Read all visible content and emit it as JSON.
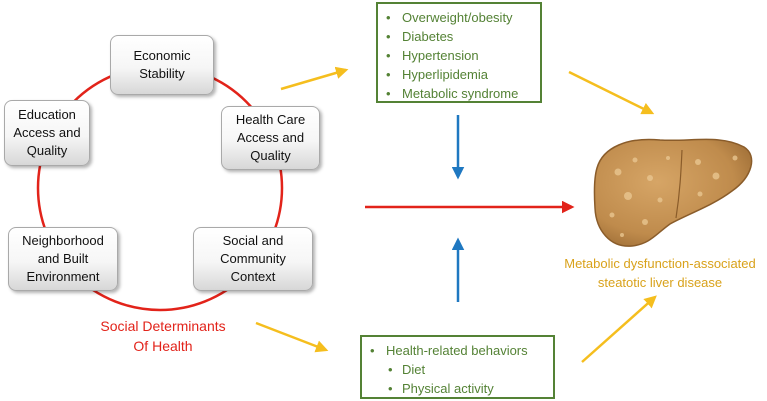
{
  "sdoh": {
    "title_line1": "Social Determinants",
    "title_line2": "Of Health",
    "boxes": {
      "economic": "Economic\nStability",
      "health_care": "Health Care\nAccess and\nQuality",
      "social": "Social and\nCommunity\nContext",
      "neighborhood": "Neighborhood\nand Built\nEnvironment",
      "education": "Education\nAccess and\nQuality"
    }
  },
  "metabolic_conditions": [
    "Overweight/obesity",
    "Diabetes",
    "Hypertension",
    "Hyperlipidemia",
    "Metabolic syndrome"
  ],
  "behaviors": {
    "header": "Health-related behaviors",
    "items": [
      "Diet",
      "Physical activity"
    ]
  },
  "outcome": {
    "label": "Metabolic dysfunction-associated\nsteatotic liver disease"
  },
  "colors": {
    "sdoh_red": "#e2231a",
    "box_green": "#548235",
    "arrow_gold": "#f5be1e",
    "arrow_blue": "#1f78c1",
    "outcome_gold": "#d9a21b",
    "liver": "#c28e52"
  }
}
